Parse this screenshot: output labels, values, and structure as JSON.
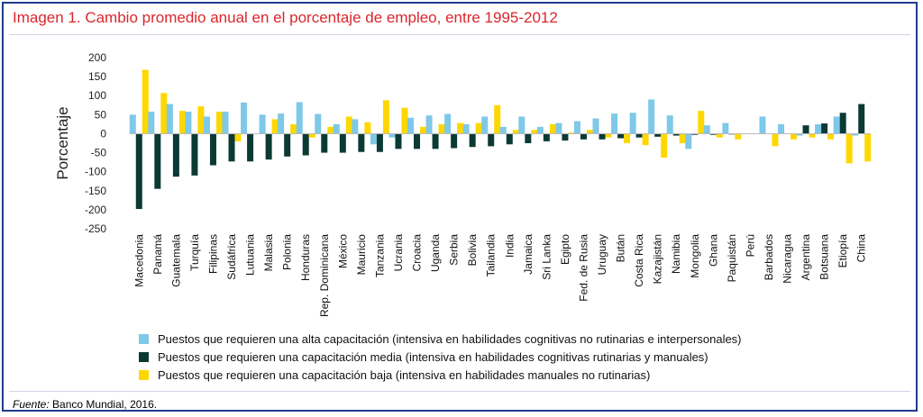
{
  "title": "Imagen 1. Cambio promedio anual en el porcentaje de empleo, entre 1995-2012",
  "source": {
    "label": "Fuente:",
    "text": " Banco Mundial, 2016."
  },
  "colors": {
    "alta": "#7ec8e8",
    "media": "#0b3a35",
    "baja": "#ffd700"
  },
  "chart_data": {
    "type": "bar",
    "ylabel": "Porcentaje",
    "ylim": [
      -250,
      200
    ],
    "yticks": [
      -250,
      -200,
      -150,
      -100,
      -50,
      0,
      50,
      100,
      150,
      200
    ],
    "categories": [
      "Macedonia",
      "Panamá",
      "Guatemala",
      "Turquía",
      "Filipinas",
      "Sudáfrica",
      "Lutuania",
      "Malasia",
      "Polonia",
      "Honduras",
      "Rep. Dominicana",
      "México",
      "Mauricio",
      "Tanzania",
      "Ucrania",
      "Croacia",
      "Uganda",
      "Serbia",
      "Bolivia",
      "Tailandia",
      "India",
      "Jamaica",
      "Sri Lanka",
      "Egipto",
      "Fed. de Rusia",
      "Uruguay",
      "Bután",
      "Costa Rica",
      "Kazajistán",
      "Namibia",
      "Mongolia",
      "Ghana",
      "Paquistán",
      "Perú",
      "Barbados",
      "Nicaragua",
      "Argentina",
      "Botsuana",
      "Etiopía",
      "China"
    ],
    "series": [
      {
        "name": "Puestos que requieren una alta capacitación (intensiva en habilidades cognitivas no rutinarias e interpersonales)",
        "color": "#7ec8e8",
        "values": [
          50,
          58,
          78,
          58,
          45,
          58,
          82,
          50,
          53,
          83,
          52,
          25,
          38,
          -28,
          -10,
          42,
          48,
          52,
          25,
          45,
          18,
          45,
          18,
          28,
          33,
          40,
          53,
          55,
          90,
          48,
          -40,
          22,
          28,
          0,
          45,
          25,
          -5,
          25,
          45,
          -5
        ]
      },
      {
        "name": "Puestos que requieren una capacitación media (intensiva en habilidades cognitivas rutinarias y manuales)",
        "color": "#0b3a35",
        "values": [
          -198,
          -145,
          -113,
          -110,
          -83,
          -73,
          -73,
          -68,
          -60,
          -57,
          -50,
          -50,
          -48,
          -48,
          -40,
          -40,
          -40,
          -38,
          -35,
          -33,
          -28,
          -25,
          -20,
          -18,
          -15,
          -15,
          -12,
          -10,
          -8,
          -5,
          -3,
          -3,
          -2,
          0,
          0,
          0,
          22,
          27,
          55,
          78
        ]
      },
      {
        "name": "Puestos que requieren una capacitación baja (intensiva en habilidades manuales no rutinarias)",
        "color": "#ffd700",
        "values": [
          168,
          107,
          60,
          72,
          58,
          -20,
          0,
          38,
          25,
          -10,
          18,
          45,
          30,
          88,
          68,
          18,
          25,
          28,
          28,
          75,
          10,
          10,
          25,
          3,
          10,
          -10,
          -25,
          -30,
          -63,
          -25,
          60,
          -10,
          -15,
          0,
          -33,
          -15,
          -10,
          -15,
          -78,
          -73
        ]
      }
    ],
    "grid": false,
    "legend": "bottom"
  }
}
